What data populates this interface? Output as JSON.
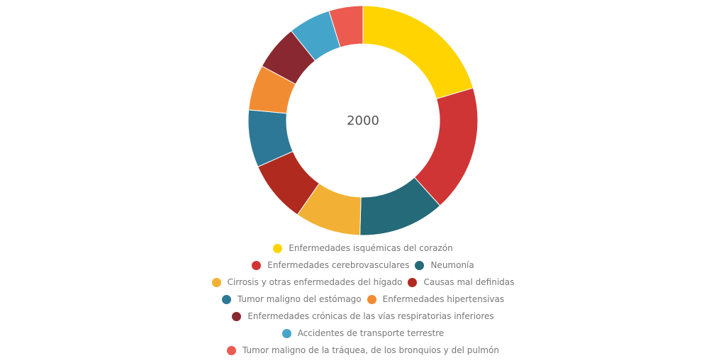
{
  "chart_data": {
    "type": "pie",
    "title": "",
    "center_label": "2000",
    "slices": [
      {
        "label": "Enfermedades isquémicas del corazón",
        "value": 19.2,
        "color": "#FFD400"
      },
      {
        "label": "Enfermedades cerebrovasculares",
        "value": 16.8,
        "color": "#D03535"
      },
      {
        "label": "Neumonía",
        "value": 11.4,
        "color": "#246A78"
      },
      {
        "label": "Cirrosis y otras enfermedades del hígado",
        "value": 8.7,
        "color": "#F2B134"
      },
      {
        "label": "Causas mal definidas",
        "value": 8.2,
        "color": "#B02A1F"
      },
      {
        "label": "Tumor maligno del estómago",
        "value": 7.6,
        "color": "#2D7896"
      },
      {
        "label": "Enfermedades hipertensivas",
        "value": 6.0,
        "color": "#F28C33"
      },
      {
        "label": "Enfermedades crónicas de las vías respiratorias inferiores",
        "value": 6.0,
        "color": "#8A2831"
      },
      {
        "label": "Accidentes de transporte terrestre",
        "value": 5.6,
        "color": "#45A4C9"
      },
      {
        "label": "Tumor maligno de la tráquea, de los bronquios y del pulmón",
        "value": 4.5,
        "color": "#EC5A50"
      }
    ],
    "legend_rows": [
      [
        0
      ],
      [
        1,
        2
      ],
      [
        3,
        4
      ],
      [
        5,
        6
      ],
      [
        7
      ],
      [
        8
      ],
      [
        9
      ]
    ],
    "legend_position": "bottom"
  }
}
